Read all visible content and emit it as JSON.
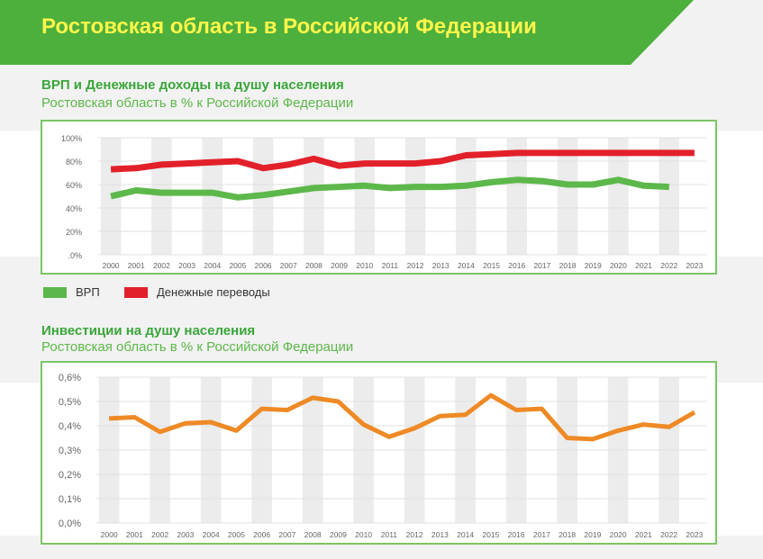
{
  "header": {
    "title": "Ростовская область в Российской Федерации"
  },
  "colors": {
    "banner": "#4daf3c",
    "title_text": "#fff64a",
    "section_title": "#3aa63a",
    "frame": "#7cc466"
  },
  "charts": {
    "income": {
      "title": "ВРП и Денежные доходы на душу населения",
      "subtitle": "Ростовская область в % к Российской Федерации"
    },
    "investment": {
      "title": "Инвестиции на душу населения",
      "subtitle": "Ростовская область в % к Российской Федерации"
    }
  },
  "legend": [
    {
      "label": "ВРП",
      "color": "#5cb84a"
    },
    {
      "label": "Денежные переводы",
      "color": "#e2202a"
    }
  ],
  "chart_data": [
    {
      "type": "line",
      "years": [
        "2000",
        "2001",
        "2002",
        "2003",
        "2004",
        "2005",
        "2006",
        "2007",
        "2008",
        "2009",
        "2010",
        "2011",
        "2012",
        "2013",
        "2014",
        "2015",
        "2016",
        "2017",
        "2018",
        "2019",
        "2020",
        "2021",
        "2022",
        "2023"
      ],
      "yticks": [
        "100%",
        "80%",
        "60%",
        "40%",
        "20%",
        ".0%"
      ],
      "ylim": [
        0,
        100
      ],
      "grid": true,
      "series": [
        {
          "name": "ВРП",
          "color": "#5cb84a",
          "values": [
            50,
            55,
            53,
            53,
            53,
            49,
            51,
            54,
            57,
            58,
            59,
            57,
            58,
            58,
            59,
            62,
            64,
            63,
            60,
            60,
            64,
            59,
            58,
            null
          ]
        },
        {
          "name": "Денежные переводы",
          "color": "#e2202a",
          "values": [
            73,
            74,
            77,
            78,
            79,
            80,
            74,
            77,
            82,
            76,
            78,
            78,
            78,
            80,
            85,
            86,
            87,
            87,
            87,
            87,
            87,
            87,
            87,
            87
          ]
        }
      ]
    },
    {
      "type": "line",
      "years": [
        "2000",
        "2001",
        "2002",
        "2003",
        "2004",
        "2005",
        "2006",
        "2007",
        "2008",
        "2009",
        "2010",
        "2011",
        "2012",
        "2013",
        "2014",
        "2015",
        "2016",
        "2017",
        "2018",
        "2019",
        "2020",
        "2021",
        "2022",
        "2023"
      ],
      "yticks": [
        "0,6%",
        "0,5%",
        "0,4%",
        "0,3%",
        "0,2%",
        "0,1%",
        "0,0%"
      ],
      "ylim": [
        0,
        0.6
      ],
      "grid": true,
      "series": [
        {
          "color": "#ee8a25",
          "values": [
            0.43,
            0.435,
            0.375,
            0.41,
            0.415,
            0.38,
            0.47,
            0.465,
            0.515,
            0.5,
            0.405,
            0.355,
            0.39,
            0.44,
            0.445,
            0.525,
            0.465,
            0.47,
            0.35,
            0.345,
            0.38,
            0.405,
            0.395,
            0.455
          ]
        }
      ]
    }
  ]
}
